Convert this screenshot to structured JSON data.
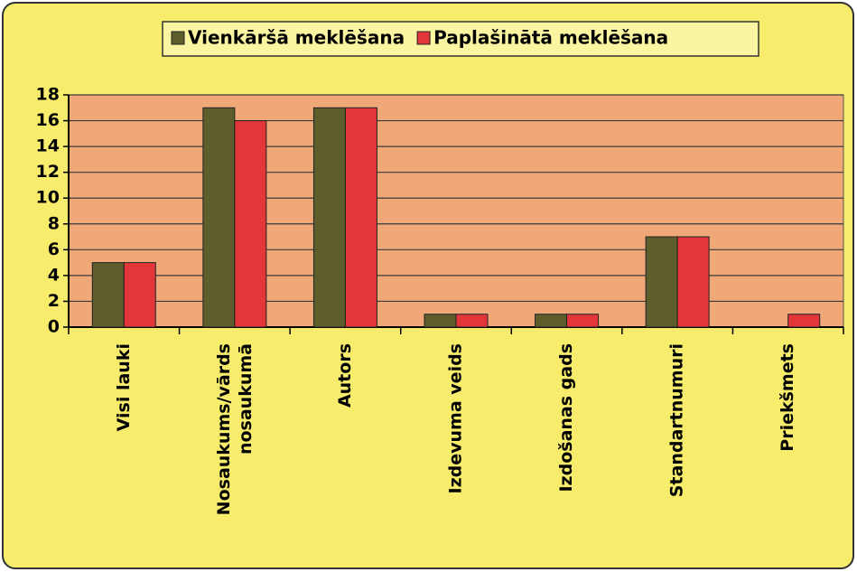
{
  "chart_data": {
    "type": "bar",
    "categories": [
      "Visi lauki",
      "Nosaukums/vārds nosaukumā",
      "Autors",
      "Izdevuma veids",
      "Izdošanas gads",
      "Standartnumuri",
      "Priekšmets"
    ],
    "series": [
      {
        "name": "Vienkāršā meklēšana",
        "color": "#5e5e2c",
        "values": [
          5,
          17,
          17,
          1,
          1,
          7,
          0
        ]
      },
      {
        "name": "Paplašinātā meklēšana",
        "color": "#e2363a",
        "values": [
          5,
          16,
          17,
          1,
          1,
          7,
          1
        ]
      }
    ],
    "ylim": [
      0,
      18
    ],
    "yticks": [
      0,
      2,
      4,
      6,
      8,
      10,
      12,
      14,
      16,
      18
    ],
    "grid": true,
    "legend": "top"
  }
}
